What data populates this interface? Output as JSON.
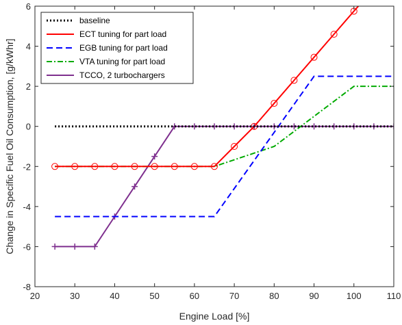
{
  "chart_data": {
    "type": "line",
    "title": "",
    "xlabel": "Engine Load [%]",
    "ylabel": "Change in Specific Fuel Oil Consumption, [g/kWhr]",
    "xlim": [
      20,
      110
    ],
    "ylim": [
      -8,
      6
    ],
    "xticks": [
      20,
      30,
      40,
      50,
      60,
      70,
      80,
      90,
      100,
      110
    ],
    "yticks": [
      -8,
      -6,
      -4,
      -2,
      0,
      2,
      4,
      6
    ],
    "legend_position": "top-left",
    "grid": false,
    "series": [
      {
        "name": "baseline",
        "color": "#000000",
        "line_style": "dotted",
        "marker": "none",
        "x": [
          25,
          110
        ],
        "y": [
          0,
          0
        ]
      },
      {
        "name": "ECT tuning for part load",
        "color": "#ff0000",
        "line_style": "solid",
        "marker": "circle",
        "x": [
          25,
          30,
          35,
          40,
          45,
          50,
          55,
          60,
          65,
          70,
          75,
          80,
          85,
          90,
          95,
          100,
          102
        ],
        "y": [
          -2,
          -2,
          -2,
          -2,
          -2,
          -2,
          -2,
          -2,
          -2,
          -1,
          0,
          1.15,
          2.3,
          3.45,
          4.6,
          5.75,
          6.2
        ],
        "marker_x": [
          25,
          30,
          35,
          40,
          45,
          50,
          55,
          60,
          65,
          70,
          75,
          80,
          85,
          90,
          95,
          100
        ]
      },
      {
        "name": "EGB tuning for part load",
        "color": "#0000ff",
        "line_style": "dashed",
        "marker": "none",
        "x": [
          25,
          65,
          90,
          110
        ],
        "y": [
          -4.5,
          -4.5,
          2.5,
          2.5
        ]
      },
      {
        "name": "VTA tuning for part load",
        "color": "#00aa00",
        "line_style": "dash-dot",
        "marker": "none",
        "x": [
          25,
          65,
          80,
          100,
          110
        ],
        "y": [
          -2,
          -2,
          -1,
          2,
          2
        ]
      },
      {
        "name": "TCCO, 2 turbochargers",
        "color": "#7e2f8e",
        "line_style": "solid",
        "marker": "plus",
        "x": [
          25,
          30,
          35,
          40,
          45,
          50,
          55,
          60,
          65,
          70,
          75,
          80,
          85,
          90,
          95,
          100,
          105,
          110
        ],
        "y": [
          -6,
          -6,
          -6,
          -4.5,
          -3,
          -1.5,
          0,
          0,
          0,
          0,
          0,
          0,
          0,
          0,
          0,
          0,
          0,
          0
        ],
        "marker_x": [
          25,
          30,
          35,
          40,
          45,
          50,
          55,
          60,
          65,
          70,
          75,
          80,
          85,
          90,
          95,
          100,
          105,
          110
        ]
      }
    ]
  }
}
